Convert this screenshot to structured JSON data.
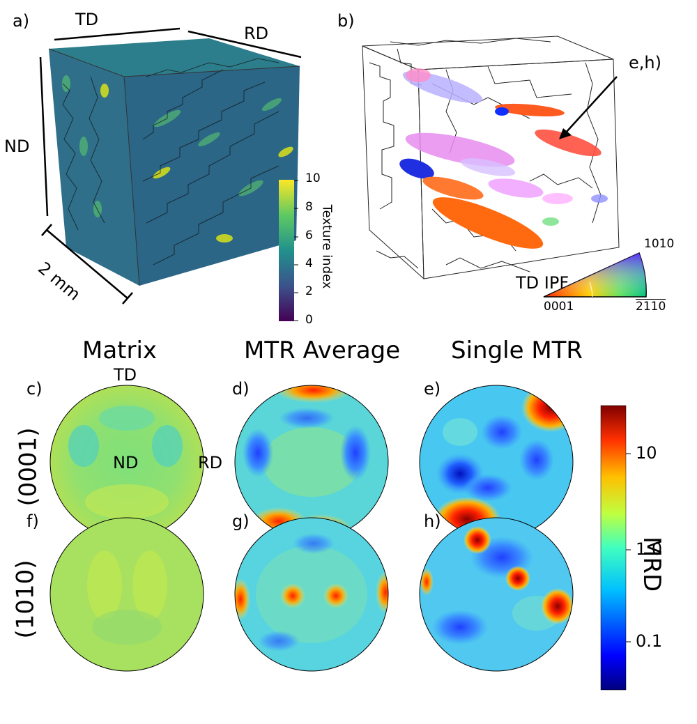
{
  "panel_a": {
    "label": "a)",
    "axis_td": "TD",
    "axis_rd": "RD",
    "axis_nd": "ND",
    "scale": "2 mm",
    "colorbar": {
      "title": "Texture index",
      "ticks": [
        "0",
        "2",
        "4",
        "6",
        "8",
        "10"
      ]
    }
  },
  "panel_b": {
    "label": "b)",
    "arrow_label": "e,h)",
    "ipf_title": "TD IPF",
    "ipf_corners": [
      "0001",
      "2̅ 1̅ 10",
      "101̅0"
    ],
    "ipf_corner_0001": "0001",
    "ipf_corner_2110": "2110",
    "ipf_corner_1010": "1010"
  },
  "columns": {
    "matrix": "Matrix",
    "mtr_average": "MTR Average",
    "single_mtr": "Single MTR"
  },
  "rows": {
    "basal": "(0001)",
    "prism": "(1010)"
  },
  "pole_figures": {
    "c": {
      "label": "c)",
      "td": "TD",
      "nd": "ND",
      "rd": "RD"
    },
    "d": {
      "label": "d)"
    },
    "e": {
      "label": "e)"
    },
    "f": {
      "label": "f)"
    },
    "g": {
      "label": "g)"
    },
    "h": {
      "label": "h)"
    }
  },
  "mrd_colorbar": {
    "title": "MRD",
    "ticks": [
      "10",
      "1.0",
      "0.1"
    ]
  },
  "colors": {
    "viridis_dark": "#440154",
    "viridis_mid": "#21918c",
    "viridis_light": "#fde725",
    "jet_low": "#00007f",
    "jet_high": "#7f0000"
  }
}
